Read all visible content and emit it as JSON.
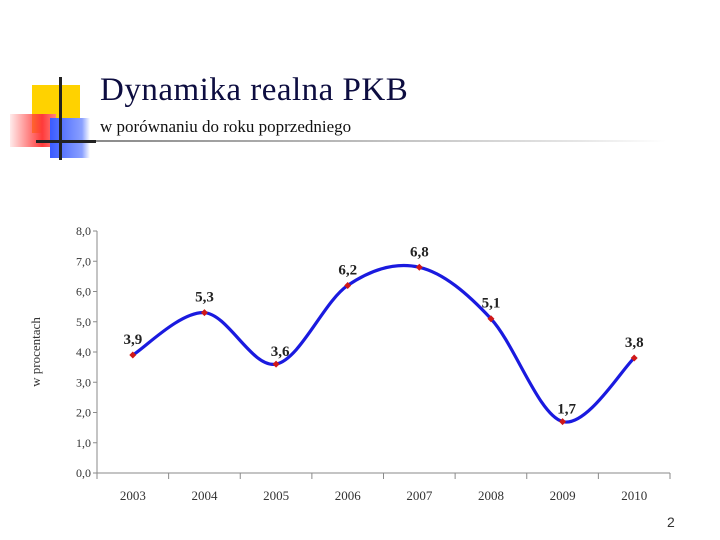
{
  "slide": {
    "title": "Dynamika realna PKB",
    "subtitle": "w porównaniu do roku poprzedniego",
    "page_number": "2"
  },
  "colors": {
    "line": "#1a1adf",
    "marker": "#d01818",
    "title": "#0d0d40",
    "accent_yellow": "#ffd200",
    "accent_red": "#ff3a3a",
    "accent_blue": "#3a5bff"
  },
  "chart_data": {
    "type": "line",
    "smooth": true,
    "categories": [
      "2003",
      "2004",
      "2005",
      "2006",
      "2007",
      "2008",
      "2009",
      "2010"
    ],
    "series": [
      {
        "values": [
          3.9,
          5.3,
          3.6,
          6.2,
          6.8,
          5.1,
          1.7,
          3.8
        ]
      }
    ],
    "data_labels": [
      "3,9",
      "5,3",
      "3,6",
      "6,2",
      "6,8",
      "5,1",
      "1,7",
      "3,8"
    ],
    "ylabel": "w procentach",
    "ylim": [
      0,
      8
    ],
    "yticks": [
      0,
      1,
      2,
      3,
      4,
      5,
      6,
      7,
      8
    ],
    "ytick_labels": [
      "0,0",
      "1,0",
      "2,0",
      "3,0",
      "4,0",
      "5,0",
      "6,0",
      "7,0",
      "8,0"
    ],
    "grid": false,
    "legend": "none"
  }
}
